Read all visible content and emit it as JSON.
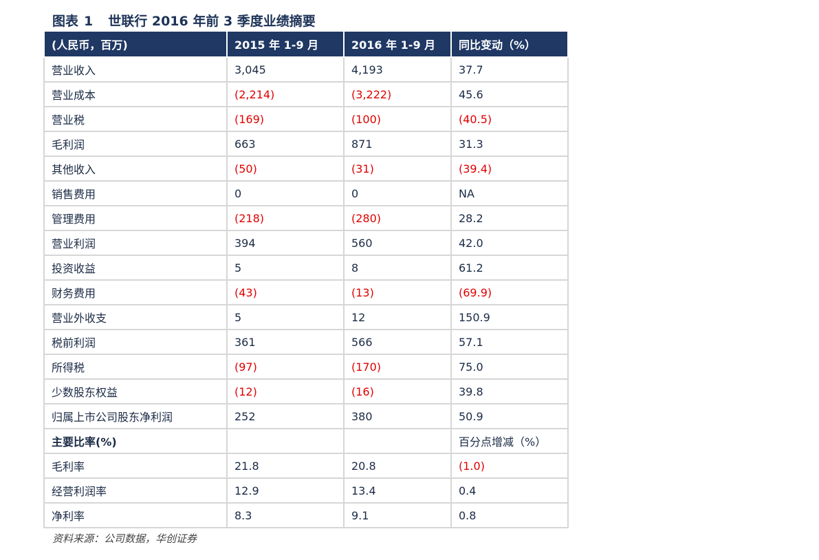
{
  "figure": {
    "label": "图表",
    "number": "1",
    "title": "世联行 2016 年前 3 季度业绩摘要"
  },
  "table": {
    "headers": [
      "(人民币，百万)",
      "2015 年 1-9 月",
      "2016 年 1-9 月",
      "同比变动（%）"
    ],
    "rows": [
      {
        "label": "营业收入",
        "v2015": "3,045",
        "v2016": "4,193",
        "change": "37.7"
      },
      {
        "label": "营业成本",
        "v2015": "(2,214)",
        "v2016": "(3,222)",
        "change": "45.6"
      },
      {
        "label": "营业税",
        "v2015": "(169)",
        "v2016": "(100)",
        "change": "(40.5)"
      },
      {
        "label": "毛利润",
        "v2015": "663",
        "v2016": "871",
        "change": "31.3"
      },
      {
        "label": "其他收入",
        "v2015": "(50)",
        "v2016": "(31)",
        "change": "(39.4)"
      },
      {
        "label": "销售费用",
        "v2015": "0",
        "v2016": "0",
        "change": "NA"
      },
      {
        "label": "管理费用",
        "v2015": "(218)",
        "v2016": "(280)",
        "change": "28.2"
      },
      {
        "label": "营业利润",
        "v2015": "394",
        "v2016": "560",
        "change": "42.0"
      },
      {
        "label": "投资收益",
        "v2015": "5",
        "v2016": "8",
        "change": "61.2"
      },
      {
        "label": "财务费用",
        "v2015": "(43)",
        "v2016": "(13)",
        "change": "(69.9)"
      },
      {
        "label": "营业外收支",
        "v2015": "5",
        "v2016": "12",
        "change": "150.9"
      },
      {
        "label": "税前利润",
        "v2015": "361",
        "v2016": "566",
        "change": "57.1"
      },
      {
        "label": "所得税",
        "v2015": "(97)",
        "v2016": "(170)",
        "change": "75.0"
      },
      {
        "label": "少数股东权益",
        "v2015": "(12)",
        "v2016": "(16)",
        "change": "39.8"
      },
      {
        "label": "归属上市公司股东净利润",
        "v2015": "252",
        "v2016": "380",
        "change": "50.9"
      },
      {
        "label": "主要比率(%)",
        "v2015": "",
        "v2016": "",
        "change": "百分点增减（%）",
        "subhead": true
      },
      {
        "label": "毛利率",
        "v2015": "21.8",
        "v2016": "20.8",
        "change": "(1.0)"
      },
      {
        "label": "经营利润率",
        "v2015": "12.9",
        "v2016": "13.4",
        "change": "0.4"
      },
      {
        "label": "净利率",
        "v2015": "8.3",
        "v2016": "9.1",
        "change": "0.8"
      }
    ]
  },
  "source": "资料来源：公司数据，华创证券",
  "colors": {
    "header_bg": "#1f3864",
    "title_text": "#1d3357",
    "negative_text": "#e00000",
    "grid_line": "#d6d6d6"
  }
}
